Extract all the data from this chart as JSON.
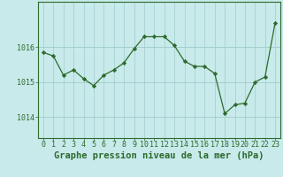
{
  "x": [
    0,
    1,
    2,
    3,
    4,
    5,
    6,
    7,
    8,
    9,
    10,
    11,
    12,
    13,
    14,
    15,
    16,
    17,
    18,
    19,
    20,
    21,
    22,
    23
  ],
  "y": [
    1015.85,
    1015.75,
    1015.2,
    1015.35,
    1015.1,
    1014.9,
    1015.2,
    1015.35,
    1015.55,
    1015.95,
    1016.3,
    1016.3,
    1016.3,
    1016.05,
    1015.6,
    1015.45,
    1015.45,
    1015.25,
    1014.1,
    1014.35,
    1014.4,
    1015.0,
    1015.15,
    1016.7
  ],
  "line_color": "#2d6a2d",
  "marker_color": "#2d6a2d",
  "bg_color": "#c8eaea",
  "grid_color": "#a0cccc",
  "yticks": [
    1014,
    1015,
    1016
  ],
  "ylim": [
    1013.4,
    1017.3
  ],
  "xlim": [
    -0.5,
    23.5
  ],
  "xlabel": "Graphe pression niveau de la mer (hPa)",
  "xlabel_fontsize": 7.5,
  "tick_fontsize": 6.0
}
